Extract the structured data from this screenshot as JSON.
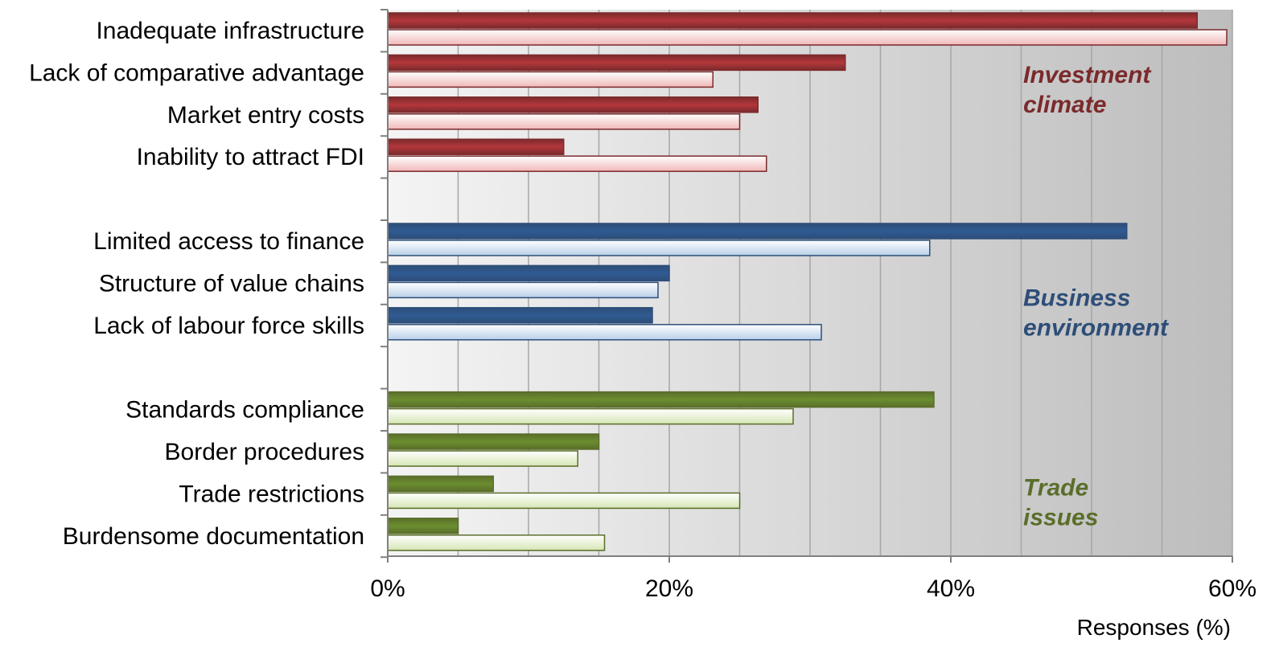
{
  "chart_data": {
    "type": "bar",
    "orientation": "horizontal",
    "xlabel": "Responses (%)",
    "xlim": [
      0,
      60
    ],
    "xticks": [
      "0%",
      "20%",
      "40%",
      "60%"
    ],
    "grid": true,
    "groups": [
      {
        "label": "Investment climate",
        "label_lines": [
          "Investment",
          "climate"
        ],
        "color": "#7b2a2c",
        "dark_color": "#b3373b",
        "light_color": "#f0b8b8",
        "categories": [
          "Inadequate infrastructure",
          "Lack of comparative advantage",
          "Market entry costs",
          "Inability to attract FDI"
        ],
        "series": [
          {
            "values": [
              57.5,
              32.5,
              26.3,
              12.5
            ]
          },
          {
            "values": [
              59.6,
              23.1,
              25.0,
              26.9
            ]
          }
        ]
      },
      {
        "label": "Business environment",
        "label_lines": [
          "Business",
          "environment"
        ],
        "color": "#2e4e78",
        "dark_color": "#2f5b93",
        "light_color": "#b9cfe8",
        "categories": [
          "Limited access to finance",
          "Structure of value chains",
          "Lack of labour force skills"
        ],
        "series": [
          {
            "values": [
              52.5,
              20.0,
              18.8
            ]
          },
          {
            "values": [
              38.5,
              19.2,
              30.8
            ]
          }
        ]
      },
      {
        "label": "Trade issues",
        "label_lines": [
          "Trade",
          "issues"
        ],
        "color": "#5a6e2a",
        "dark_color": "#6b8e2f",
        "light_color": "#d5e6b4",
        "categories": [
          "Standards compliance",
          "Border procedures",
          "Trade restrictions",
          "Burdensome documentation"
        ],
        "series": [
          {
            "values": [
              38.8,
              15.0,
              7.5,
              5.0
            ]
          },
          {
            "values": [
              28.8,
              13.5,
              25.0,
              15.4
            ]
          }
        ]
      }
    ]
  }
}
